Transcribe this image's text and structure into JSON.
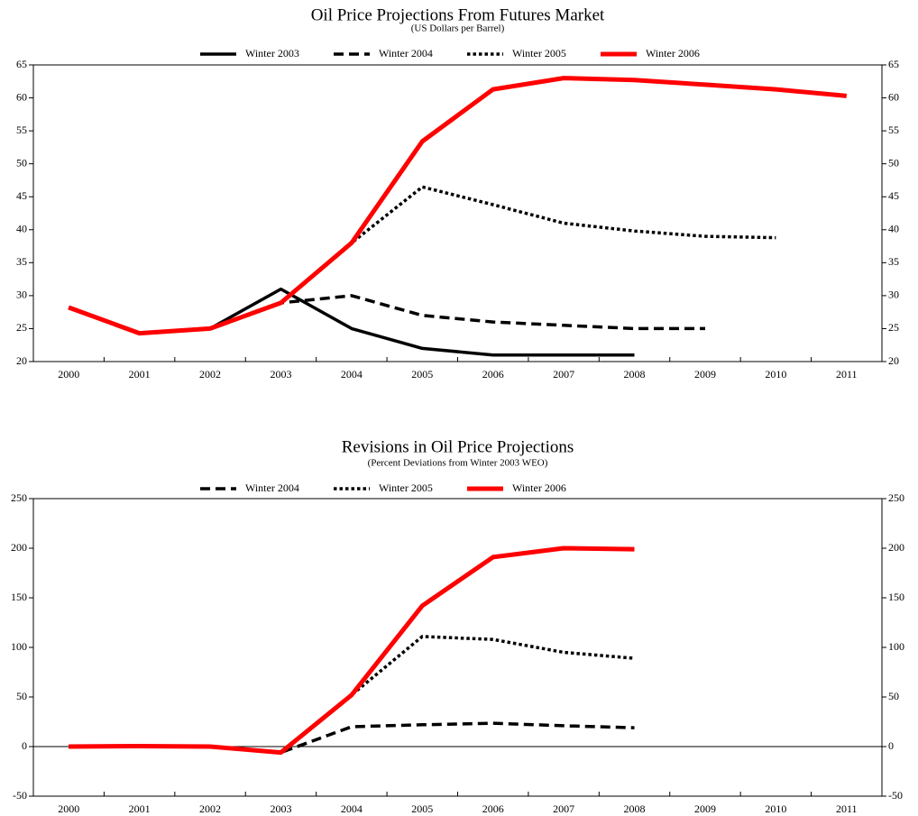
{
  "chart_data": [
    {
      "type": "line",
      "title": "Oil Price Projections From Futures Market",
      "subtitle": "(US Dollars per Barrel)",
      "categories": [
        "2000",
        "2001",
        "2002",
        "2003",
        "2004",
        "2005",
        "2006",
        "2007",
        "2008",
        "2009",
        "2010",
        "2011"
      ],
      "ylim": [
        20,
        65
      ],
      "yticks": [
        20,
        25,
        30,
        35,
        40,
        45,
        50,
        55,
        60,
        65
      ],
      "series": [
        {
          "name": "Winter 2003",
          "color": "#000000",
          "dash": "solid",
          "values": [
            28.2,
            24.3,
            25,
            31,
            25,
            22,
            21,
            21,
            21,
            null,
            null,
            null
          ]
        },
        {
          "name": "Winter 2004",
          "color": "#000000",
          "dash": "dashed",
          "values": [
            28.2,
            24.3,
            25,
            28.9,
            30,
            27,
            26,
            25.5,
            25,
            25,
            null,
            null
          ]
        },
        {
          "name": "Winter 2005",
          "color": "#000000",
          "dash": "dotted",
          "values": [
            28.2,
            24.3,
            25,
            28.9,
            38,
            46.5,
            43.8,
            41,
            39.8,
            39,
            38.8,
            null
          ]
        },
        {
          "name": "Winter 2006",
          "color": "#ff0000",
          "dash": "solid",
          "values": [
            28.2,
            24.3,
            25,
            28.9,
            38,
            53.4,
            61.3,
            63,
            62.7,
            62,
            61.3,
            60.3
          ]
        }
      ]
    },
    {
      "type": "line",
      "title": "Revisions in Oil Price Projections",
      "subtitle": "(Percent Deviations from Winter 2003 WEO)",
      "categories": [
        "2000",
        "2001",
        "2002",
        "2003",
        "2004",
        "2005",
        "2006",
        "2007",
        "2008",
        "2009",
        "2010",
        "2011"
      ],
      "ylim": [
        -50,
        250
      ],
      "yticks": [
        -50,
        0,
        50,
        100,
        150,
        200,
        250
      ],
      "series": [
        {
          "name": "Winter 2004",
          "color": "#000000",
          "dash": "dashed",
          "values": [
            0,
            0.5,
            0,
            -6,
            20,
            22,
            23.5,
            21,
            19,
            null,
            null,
            null
          ]
        },
        {
          "name": "Winter 2005",
          "color": "#000000",
          "dash": "dotted",
          "values": [
            0,
            0.5,
            0,
            -6,
            52,
            111,
            108,
            95,
            89,
            null,
            null,
            null
          ]
        },
        {
          "name": "Winter 2006",
          "color": "#ff0000",
          "dash": "solid",
          "values": [
            0,
            0.5,
            0,
            -6,
            52,
            142,
            191,
            200,
            199,
            null,
            null,
            null
          ]
        }
      ]
    }
  ]
}
